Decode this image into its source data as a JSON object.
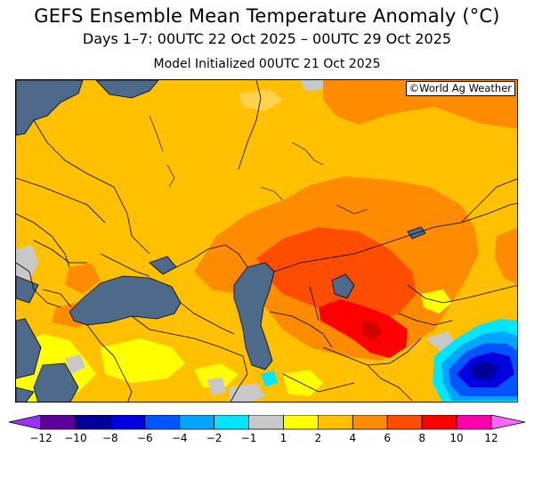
{
  "header": {
    "title": "GEFS Ensemble Mean Temperature Anomaly (°C)",
    "period": "Days 1–7: 00UTC 22 Oct 2025 – 00UTC 29 Oct 2025",
    "initialized": "Model Initialized 00UTC 21 Oct 2025"
  },
  "map": {
    "credit": "©World Ag Weather",
    "region": "Eastern Europe, Black Sea, Caspian Sea and Central Asia",
    "land_default_color": "#ffc000",
    "water_color": "#4d6a8a"
  },
  "legend": {
    "bins": [
      {
        "from": -12,
        "to": -10,
        "color": "#5c0099"
      },
      {
        "from": -10,
        "to": -8,
        "color": "#000099"
      },
      {
        "from": -8,
        "to": -6,
        "color": "#0000e0"
      },
      {
        "from": -6,
        "to": -4,
        "color": "#0055ff"
      },
      {
        "from": -4,
        "to": -2,
        "color": "#00a5ff"
      },
      {
        "from": -2,
        "to": -1,
        "color": "#00e6ff"
      },
      {
        "from": -1,
        "to": 1,
        "color": "#c8c8c8"
      },
      {
        "from": 1,
        "to": 2,
        "color": "#ffff00"
      },
      {
        "from": 2,
        "to": 4,
        "color": "#ffc000"
      },
      {
        "from": 4,
        "to": 6,
        "color": "#ff8c00"
      },
      {
        "from": 6,
        "to": 8,
        "color": "#ff4d00"
      },
      {
        "from": 8,
        "to": 10,
        "color": "#ff0000"
      },
      {
        "from": 10,
        "to": 12,
        "color": "#ff00aa"
      }
    ],
    "low_extend_color": "#9b30ff",
    "high_extend_color": "#ff66ff",
    "labels": [
      "−12",
      "−10",
      "−8",
      "−6",
      "−4",
      "−2",
      "−1",
      "1",
      "2",
      "4",
      "6",
      "8",
      "10",
      "12"
    ]
  }
}
